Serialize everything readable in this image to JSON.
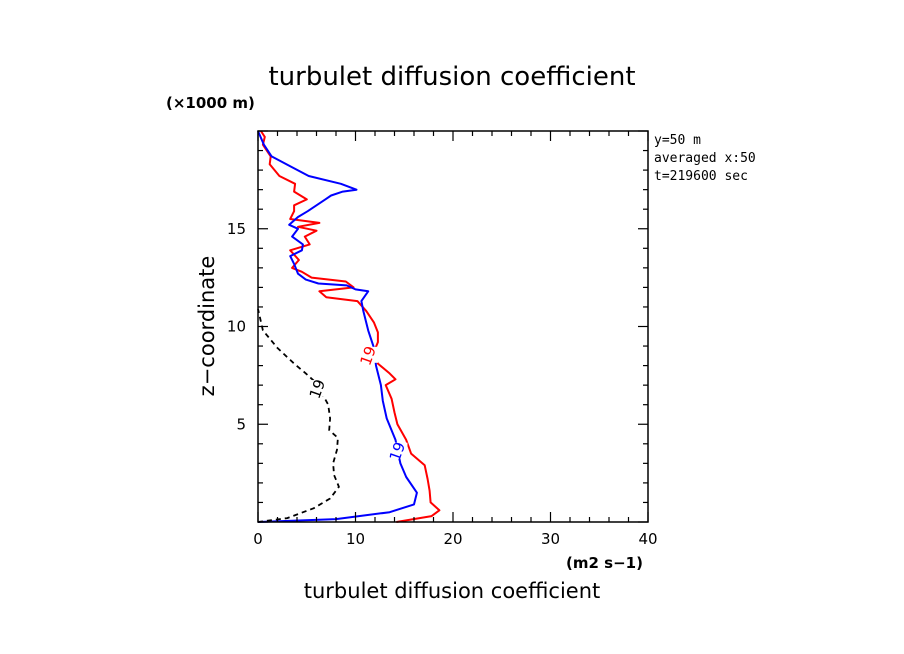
{
  "chart_data": {
    "type": "line",
    "title": "turbulet diffusion coefficient",
    "xlabel": "turbulet diffusion coefficient",
    "xunit": "(m2 s−1)",
    "ylabel": "z−coordinate",
    "yunit": "(×1000 m)",
    "xlim": [
      0,
      40
    ],
    "ylim": [
      0,
      20
    ],
    "xticks": [
      "0",
      "10",
      "20",
      "30",
      "40"
    ],
    "yticks": [
      "5",
      "10",
      "15"
    ],
    "ytick_values": [
      5,
      10,
      15
    ],
    "annotations": [
      "y=50 m",
      "averaged  x:50",
      "t=219600 sec"
    ],
    "grid": false,
    "series": [
      {
        "color": "#ff0000",
        "style": "solid",
        "contour_label": "19",
        "label_at": [
          11.3,
          8.5
        ],
        "points": [
          [
            14.2,
            0
          ],
          [
            17.8,
            0.3
          ],
          [
            18.6,
            0.6
          ],
          [
            17.7,
            1
          ],
          [
            17.6,
            1.6
          ],
          [
            17.4,
            2.2
          ],
          [
            17.1,
            2.9
          ],
          [
            15.7,
            3.5
          ],
          [
            15.2,
            4.2
          ],
          [
            14.3,
            5
          ],
          [
            14,
            5.6
          ],
          [
            13.7,
            6.3
          ],
          [
            13.1,
            7
          ],
          [
            14.1,
            7.3
          ],
          [
            13.5,
            7.6
          ],
          [
            12.3,
            8.1
          ],
          [
            11.8,
            8.6
          ],
          [
            12.3,
            9.2
          ],
          [
            12.3,
            9.7
          ],
          [
            11.9,
            10.2
          ],
          [
            11.1,
            10.8
          ],
          [
            10.2,
            11.3
          ],
          [
            7,
            11.5
          ],
          [
            6.3,
            11.8
          ],
          [
            9.8,
            12
          ],
          [
            9,
            12.3
          ],
          [
            5.5,
            12.5
          ],
          [
            4.5,
            12.8
          ],
          [
            3.5,
            13
          ],
          [
            4.2,
            13.4
          ],
          [
            3.3,
            13.9
          ],
          [
            5.3,
            14.2
          ],
          [
            4.8,
            14.6
          ],
          [
            6,
            14.9
          ],
          [
            4.1,
            15.1
          ],
          [
            6.3,
            15.3
          ],
          [
            3.3,
            15.5
          ],
          [
            3.7,
            15.9
          ],
          [
            3.7,
            16.2
          ],
          [
            5,
            16.5
          ],
          [
            3.7,
            16.9
          ],
          [
            3.8,
            17.3
          ],
          [
            2.2,
            17.7
          ],
          [
            1.2,
            18.3
          ],
          [
            1.3,
            18.7
          ],
          [
            0.5,
            19.3
          ],
          [
            0.7,
            19.7
          ],
          [
            0.3,
            20
          ]
        ]
      },
      {
        "color": "#0000ff",
        "style": "solid",
        "contour_label": "19",
        "label_at": [
          14.3,
          3.6
        ],
        "points": [
          [
            0,
            0
          ],
          [
            8,
            0.15
          ],
          [
            13.5,
            0.5
          ],
          [
            16,
            0.9
          ],
          [
            16.3,
            1.5
          ],
          [
            15.2,
            2.3
          ],
          [
            14.6,
            3
          ],
          [
            14.1,
            4.2
          ],
          [
            13.2,
            5.3
          ],
          [
            12.8,
            6.2
          ],
          [
            12.6,
            7
          ],
          [
            12.1,
            8
          ],
          [
            11.9,
            8.9
          ],
          [
            11.3,
            9.8
          ],
          [
            10.8,
            10.8
          ],
          [
            10.6,
            11.3
          ],
          [
            11.3,
            11.8
          ],
          [
            10,
            11.9
          ],
          [
            9.1,
            12.1
          ],
          [
            6.2,
            12.2
          ],
          [
            4.9,
            12.4
          ],
          [
            4.1,
            12.7
          ],
          [
            3.7,
            13.2
          ],
          [
            3.3,
            13.6
          ],
          [
            4.5,
            13.9
          ],
          [
            4.6,
            14.2
          ],
          [
            3.5,
            14.6
          ],
          [
            4.1,
            15
          ],
          [
            3.2,
            15.2
          ],
          [
            4.1,
            15.6
          ],
          [
            5.1,
            15.9
          ],
          [
            6,
            16.2
          ],
          [
            6.9,
            16.5
          ],
          [
            7.5,
            16.7
          ],
          [
            8.7,
            16.9
          ],
          [
            10.1,
            17
          ],
          [
            8.5,
            17.3
          ],
          [
            5.2,
            17.7
          ],
          [
            3.3,
            18.2
          ],
          [
            1.4,
            18.7
          ],
          [
            0.6,
            19.3
          ],
          [
            0,
            20
          ]
        ]
      },
      {
        "color": "#000000",
        "style": "dashed",
        "contour_label": "19",
        "label_at": [
          6.1,
          6.8
        ],
        "points": [
          [
            0,
            0
          ],
          [
            3,
            0.2
          ],
          [
            5.7,
            0.7
          ],
          [
            7.4,
            1.2
          ],
          [
            8.3,
            1.8
          ],
          [
            7.8,
            2.4
          ],
          [
            7.7,
            3
          ],
          [
            8.1,
            3.7
          ],
          [
            8.2,
            4.3
          ],
          [
            7.3,
            4.7
          ],
          [
            7.4,
            5.3
          ],
          [
            7.2,
            6
          ],
          [
            6,
            7.1
          ],
          [
            4.9,
            7.6
          ],
          [
            3.7,
            8.1
          ],
          [
            2,
            8.9
          ],
          [
            0.5,
            9.8
          ],
          [
            0,
            10.9
          ]
        ]
      }
    ]
  }
}
